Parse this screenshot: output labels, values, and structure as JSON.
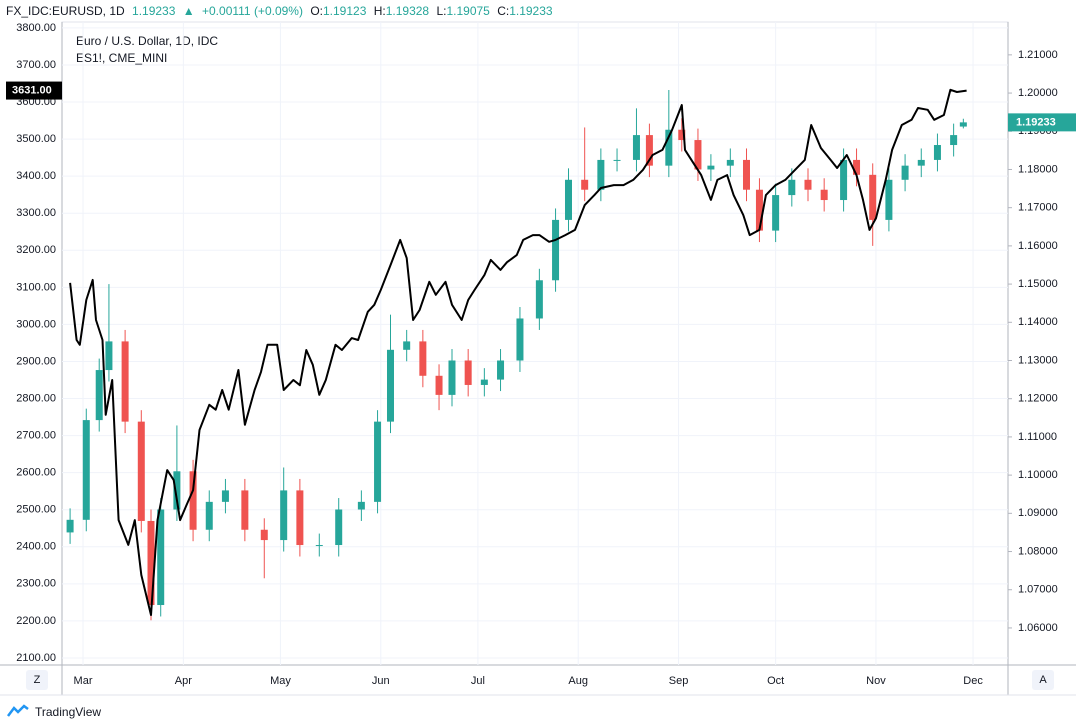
{
  "chart_data": {
    "type": "candlestick",
    "symbol": "FX_IDC:EURUSD, 1D",
    "change": "+0.00111 (+0.09%)",
    "ohlc_labels": [
      "O:",
      "H:",
      "L:",
      "C:"
    ],
    "buttons": [
      "Z",
      "A"
    ],
    "brand": "TradingView",
    "up_color": "#26a69a",
    "down_color": "#ef5350",
    "grid": true,
    "xlim": [
      -6.5,
      285.8
    ],
    "xticks": [
      {
        "value": 0,
        "label": "Mar"
      },
      {
        "value": 31,
        "label": "Apr"
      },
      {
        "value": 61,
        "label": "May"
      },
      {
        "value": 92,
        "label": "Jun"
      },
      {
        "value": 122,
        "label": "Jul"
      },
      {
        "value": 153,
        "label": "Aug"
      },
      {
        "value": 184,
        "label": "Sep"
      },
      {
        "value": 214,
        "label": "Oct"
      },
      {
        "value": 245,
        "label": "Nov"
      },
      {
        "value": 275,
        "label": "Dec"
      }
    ],
    "ylim": [
      2081,
      3816
    ],
    "yticks": [
      {
        "value": 2100,
        "label": "2100.00"
      },
      {
        "value": 2200,
        "label": "2200.00"
      },
      {
        "value": 2300,
        "label": "2300.00"
      },
      {
        "value": 2400,
        "label": "2400.00"
      },
      {
        "value": 2500,
        "label": "2500.00"
      },
      {
        "value": 2600,
        "label": "2600.00"
      },
      {
        "value": 2700,
        "label": "2700.00"
      },
      {
        "value": 2800,
        "label": "2800.00"
      },
      {
        "value": 2900,
        "label": "2900.00"
      },
      {
        "value": 3000,
        "label": "3000.00"
      },
      {
        "value": 3100,
        "label": "3100.00"
      },
      {
        "value": 3200,
        "label": "3200.00"
      },
      {
        "value": 3300,
        "label": "3300.00"
      },
      {
        "value": 3400,
        "label": "3400.00"
      },
      {
        "value": 3500,
        "label": "3500.00"
      },
      {
        "value": 3600,
        "label": "3600.00"
      },
      {
        "value": 3700,
        "label": "3700.00"
      },
      {
        "value": 3800,
        "label": "3800.00"
      }
    ],
    "y2lim": [
      1.0503,
      1.2186
    ],
    "y2ticks": [
      {
        "value": 1.06,
        "label": "1.06000"
      },
      {
        "value": 1.07,
        "label": "1.07000"
      },
      {
        "value": 1.08,
        "label": "1.08000"
      },
      {
        "value": 1.09,
        "label": "1.09000"
      },
      {
        "value": 1.1,
        "label": "1.10000"
      },
      {
        "value": 1.11,
        "label": "1.11000"
      },
      {
        "value": 1.12,
        "label": "1.12000"
      },
      {
        "value": 1.13,
        "label": "1.13000"
      },
      {
        "value": 1.14,
        "label": "1.14000"
      },
      {
        "value": 1.15,
        "label": "1.15000"
      },
      {
        "value": 1.16,
        "label": "1.16000"
      },
      {
        "value": 1.17,
        "label": "1.17000"
      },
      {
        "value": 1.18,
        "label": "1.18000"
      },
      {
        "value": 1.19,
        "label": "1.19000"
      },
      {
        "value": 1.2,
        "label": "1.20000"
      },
      {
        "value": 1.21,
        "label": "1.21000"
      }
    ],
    "series": [
      {
        "name": "Euro / U.S. Dollar, 1D, IDC",
        "axis": "y2",
        "x": [
          -4,
          1,
          5,
          8,
          13,
          18,
          21,
          24,
          29,
          34,
          39,
          44,
          50,
          56,
          62,
          67,
          73,
          79,
          86,
          91,
          95,
          100,
          105,
          110,
          114,
          119,
          124,
          129,
          135,
          141,
          146,
          150,
          155,
          160,
          165,
          171,
          175,
          181,
          185,
          190,
          194,
          200,
          205,
          209,
          214,
          219,
          224,
          229,
          235,
          239,
          244,
          249,
          254,
          259,
          264,
          269,
          272
        ],
        "open": [
          1.085,
          1.0883,
          1.1144,
          1.1275,
          1.135,
          1.114,
          1.088,
          1.066,
          1.091,
          1.101,
          1.0857,
          1.093,
          1.096,
          1.0857,
          1.083,
          1.096,
          1.0817,
          1.0817,
          1.091,
          1.093,
          1.114,
          1.1328,
          1.135,
          1.126,
          1.121,
          1.13,
          1.1236,
          1.125,
          1.13,
          1.141,
          1.151,
          1.1668,
          1.1773,
          1.1747,
          1.1825,
          1.1825,
          1.189,
          1.181,
          1.1904,
          1.1877,
          1.18,
          1.181,
          1.1825,
          1.1747,
          1.164,
          1.1733,
          1.1773,
          1.1747,
          1.172,
          1.1825,
          1.1786,
          1.1668,
          1.1773,
          1.181,
          1.1825,
          1.1864,
          1.19123
        ],
        "high": [
          1.0913,
          1.1174,
          1.1305,
          1.15,
          1.138,
          1.117,
          1.091,
          1.094,
          1.113,
          1.104,
          1.096,
          1.099,
          1.099,
          1.0887,
          1.102,
          1.099,
          1.0847,
          1.094,
          1.096,
          1.117,
          1.142,
          1.138,
          1.138,
          1.129,
          1.133,
          1.133,
          1.128,
          1.133,
          1.144,
          1.154,
          1.1698,
          1.1803,
          1.191,
          1.1855,
          1.1855,
          1.196,
          1.192,
          1.2008,
          1.1934,
          1.1907,
          1.184,
          1.1855,
          1.1855,
          1.1777,
          1.1763,
          1.1803,
          1.1803,
          1.1777,
          1.1855,
          1.1855,
          1.1816,
          1.1803,
          1.184,
          1.1855,
          1.1894,
          1.192,
          1.19328
        ],
        "low": [
          1.082,
          1.0853,
          1.1114,
          1.1245,
          1.111,
          1.085,
          1.062,
          1.063,
          1.088,
          1.0827,
          1.0827,
          1.09,
          1.0827,
          1.073,
          1.08,
          1.0787,
          1.0787,
          1.0787,
          1.088,
          1.09,
          1.111,
          1.1298,
          1.123,
          1.117,
          1.118,
          1.1206,
          1.1206,
          1.122,
          1.127,
          1.138,
          1.148,
          1.1638,
          1.1717,
          1.1717,
          1.1795,
          1.1795,
          1.178,
          1.178,
          1.1847,
          1.177,
          1.177,
          1.178,
          1.1717,
          1.161,
          1.161,
          1.1703,
          1.1717,
          1.169,
          1.169,
          1.1756,
          1.16,
          1.1638,
          1.1743,
          1.178,
          1.1795,
          1.1834,
          1.19075
        ],
        "close": [
          1.0883,
          1.1144,
          1.1275,
          1.135,
          1.114,
          1.088,
          1.066,
          1.091,
          1.101,
          1.0857,
          1.093,
          1.096,
          1.0857,
          1.083,
          1.096,
          1.0817,
          1.0817,
          1.091,
          1.093,
          1.114,
          1.1328,
          1.135,
          1.126,
          1.121,
          1.13,
          1.1236,
          1.125,
          1.13,
          1.141,
          1.151,
          1.1668,
          1.1773,
          1.1747,
          1.1825,
          1.1825,
          1.189,
          1.181,
          1.1904,
          1.1877,
          1.18,
          1.181,
          1.1825,
          1.1747,
          1.164,
          1.1733,
          1.1773,
          1.1747,
          1.172,
          1.1825,
          1.1786,
          1.1668,
          1.1773,
          1.181,
          1.1825,
          1.1864,
          1.189,
          1.19233
        ]
      },
      {
        "name": "ES1!, CME_MINI",
        "type": "line",
        "color": "#000000",
        "price_label": "3631.00",
        "x": [
          -4,
          -2,
          -1,
          1,
          3,
          4,
          6,
          7,
          9,
          11,
          14,
          16,
          18,
          21,
          23,
          26,
          28,
          30,
          32,
          34,
          36,
          39,
          41,
          43,
          45,
          48,
          50,
          53,
          55,
          57,
          60,
          62,
          65,
          67,
          69,
          71,
          73,
          75,
          78,
          80,
          83,
          85,
          88,
          90,
          92,
          95,
          98,
          100,
          102,
          104,
          107,
          109,
          112,
          114,
          117,
          119,
          121,
          124,
          126,
          129,
          131,
          134,
          136,
          139,
          141,
          144,
          146,
          149,
          152,
          155,
          158,
          160,
          164,
          167,
          170,
          173,
          176,
          179,
          182,
          185,
          186,
          189,
          191,
          194,
          196,
          199,
          201,
          204,
          206,
          209,
          211,
          214,
          217,
          220,
          223,
          225,
          228,
          231,
          233,
          236,
          239,
          241,
          243,
          245,
          248,
          250,
          253,
          256,
          258,
          261,
          263,
          266,
          268,
          270,
          273
        ],
        "values": [
          3112,
          2958,
          2945,
          3066,
          3120,
          3012,
          2958,
          2756,
          2850,
          2472,
          2405,
          2472,
          2324,
          2216,
          2472,
          2607,
          2580,
          2472,
          2513,
          2553,
          2715,
          2783,
          2770,
          2823,
          2770,
          2877,
          2729,
          2823,
          2872,
          2945,
          2945,
          2823,
          2850,
          2836,
          2931,
          2891,
          2810,
          2850,
          2945,
          2931,
          2963,
          2958,
          3034,
          3053,
          3093,
          3160,
          3228,
          3179,
          3012,
          3039,
          3115,
          3080,
          3115,
          3053,
          3012,
          3066,
          3093,
          3133,
          3174,
          3147,
          3168,
          3187,
          3228,
          3241,
          3241,
          3223,
          3228,
          3241,
          3255,
          3322,
          3349,
          3368,
          3376,
          3376,
          3390,
          3417,
          3457,
          3471,
          3525,
          3592,
          3471,
          3430,
          3403,
          3336,
          3390,
          3403,
          3349,
          3295,
          3241,
          3255,
          3349,
          3376,
          3390,
          3417,
          3444,
          3538,
          3476,
          3444,
          3422,
          3457,
          3403,
          3336,
          3255,
          3287,
          3390,
          3471,
          3538,
          3552,
          3584,
          3579,
          3552,
          3565,
          3633,
          3627,
          3631
        ]
      }
    ]
  }
}
